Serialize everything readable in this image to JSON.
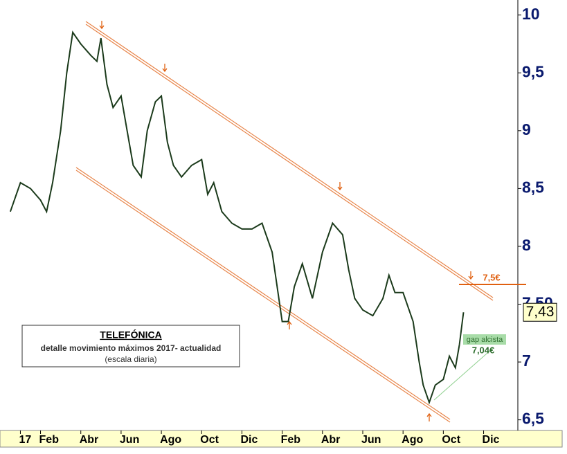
{
  "chart_data": {
    "type": "line",
    "annotations": {
      "box_title": "TELEFÓNICA",
      "box_subtitle": "detalle movimiento máximos 2017- actualidad",
      "box_note": "(escala diaria)",
      "resistance": "7,5€",
      "gap_label": "gap alcista",
      "gap_level": "7,04€"
    },
    "last_price": {
      "value": 7.43,
      "label": "7,43"
    },
    "xlim": [
      -0.6,
      24.7
    ],
    "xticks": [
      {
        "value": 0,
        "label": "17"
      },
      {
        "value": 1,
        "label": "Feb"
      },
      {
        "value": 3,
        "label": "Abr"
      },
      {
        "value": 5,
        "label": "Jun"
      },
      {
        "value": 7,
        "label": "Ago"
      },
      {
        "value": 9,
        "label": "Oct"
      },
      {
        "value": 11,
        "label": "Dic"
      },
      {
        "value": 13,
        "label": "Feb"
      },
      {
        "value": 15,
        "label": "Abr"
      },
      {
        "value": 17,
        "label": "Jun"
      },
      {
        "value": 19,
        "label": "Ago"
      },
      {
        "value": 21,
        "label": "Oct"
      },
      {
        "value": 23,
        "label": "Dic"
      }
    ],
    "ylim": [
      6.42,
      10.13
    ],
    "yticks": [
      10,
      {
        "value": 9.5,
        "label": "9,5"
      },
      9,
      {
        "value": 8.5,
        "label": "8,5"
      },
      8,
      {
        "value": 7.5,
        "label": "7,50"
      },
      7,
      {
        "value": 6.5,
        "label": "6,5"
      }
    ],
    "series": [
      {
        "color": "#1b3a1b",
        "x": [
          -0.5,
          0,
          0.5,
          1,
          1.3,
          1.6,
          2,
          2.3,
          2.6,
          3,
          3.5,
          3.8,
          4,
          4.3,
          4.6,
          5,
          5.3,
          5.6,
          6,
          6.3,
          6.7,
          7,
          7.3,
          7.6,
          8,
          8.5,
          9,
          9.3,
          9.6,
          10,
          10.5,
          11,
          11.5,
          12,
          12.5,
          13,
          13.3,
          13.6,
          14,
          14.5,
          15,
          15.5,
          16,
          16.3,
          16.6,
          17,
          17.5,
          18,
          18.3,
          18.6,
          19,
          19.5,
          19.8,
          20,
          20.3,
          20.6,
          21,
          21.3,
          21.6,
          21.8,
          22
        ],
        "values": [
          8.3,
          8.55,
          8.5,
          8.4,
          8.3,
          8.55,
          9.0,
          9.5,
          9.85,
          9.75,
          9.65,
          9.6,
          9.8,
          9.4,
          9.2,
          9.3,
          9.0,
          8.7,
          8.6,
          9.0,
          9.25,
          9.3,
          8.9,
          8.7,
          8.6,
          8.7,
          8.75,
          8.45,
          8.55,
          8.3,
          8.2,
          8.15,
          8.15,
          8.2,
          7.95,
          7.35,
          7.35,
          7.65,
          7.85,
          7.55,
          7.95,
          8.2,
          8.1,
          7.8,
          7.55,
          7.45,
          7.4,
          7.55,
          7.75,
          7.6,
          7.6,
          7.35,
          7.0,
          6.8,
          6.65,
          6.8,
          6.85,
          7.05,
          6.95,
          7.15,
          7.43
        ]
      }
    ]
  }
}
